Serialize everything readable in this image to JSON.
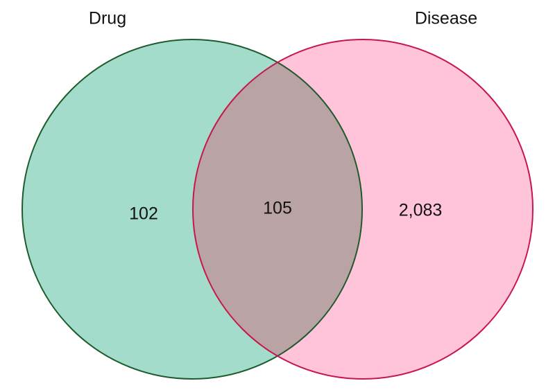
{
  "chart_data": {
    "type": "venn",
    "sets": [
      {
        "name": "Drug",
        "color": "#a3dccb",
        "edge_color": "#1d5a2c"
      },
      {
        "name": "Disease",
        "color": "#ffc4d9",
        "edge_color": "#c8154e"
      }
    ],
    "overlap_color": "#baa3a4",
    "regions": [
      "Drug",
      "Drug & Disease",
      "Disease"
    ],
    "values": [
      102,
      105,
      2083
    ],
    "value_labels": [
      "102",
      "105",
      "2,083"
    ]
  }
}
